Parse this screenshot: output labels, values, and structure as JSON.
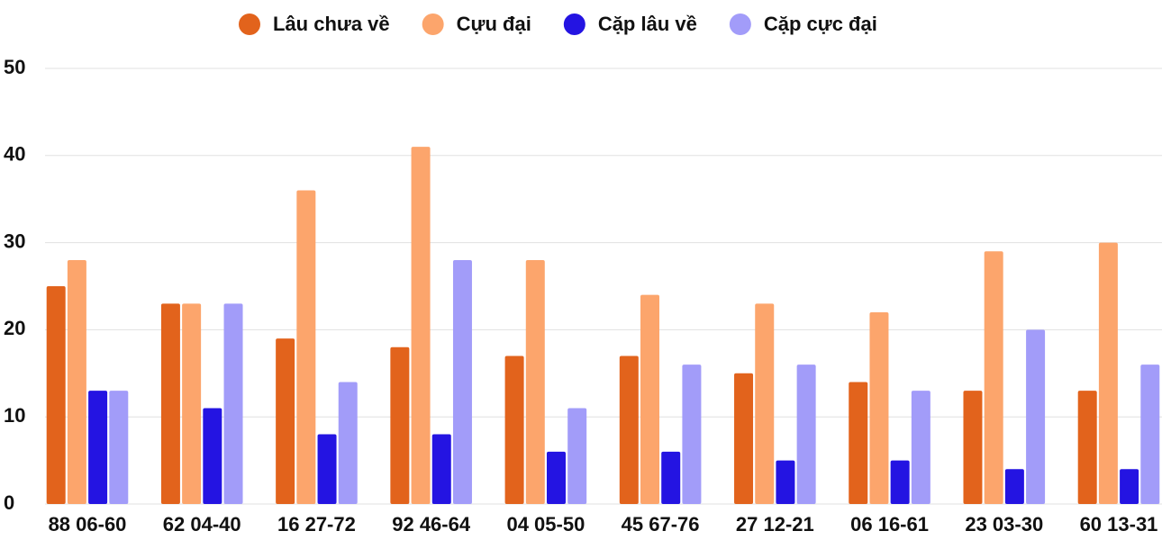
{
  "chart_data": {
    "type": "bar",
    "categories": [
      "88 06-60",
      "62 04-40",
      "16 27-72",
      "92 46-64",
      "04 05-50",
      "45 67-76",
      "27 12-21",
      "06 16-61",
      "23 03-30",
      "60 13-31"
    ],
    "series": [
      {
        "name": "Lâu chưa về",
        "color": "#e2631c",
        "values": [
          25,
          23,
          19,
          18,
          17,
          17,
          15,
          14,
          13,
          13
        ]
      },
      {
        "name": "Cựu đại",
        "color": "#fca56c",
        "values": [
          28,
          23,
          36,
          41,
          28,
          24,
          23,
          22,
          29,
          30
        ]
      },
      {
        "name": "Cặp lâu về",
        "color": "#2414e2",
        "values": [
          13,
          11,
          8,
          8,
          6,
          6,
          5,
          5,
          4,
          4
        ]
      },
      {
        "name": "Cặp cực đại",
        "color": "#a29cf9",
        "values": [
          13,
          23,
          14,
          28,
          11,
          16,
          16,
          13,
          20,
          16
        ]
      }
    ],
    "ylim": [
      0,
      50
    ],
    "yticks": [
      0,
      10,
      20,
      30,
      40,
      50
    ],
    "grid": true,
    "legend": "top"
  }
}
